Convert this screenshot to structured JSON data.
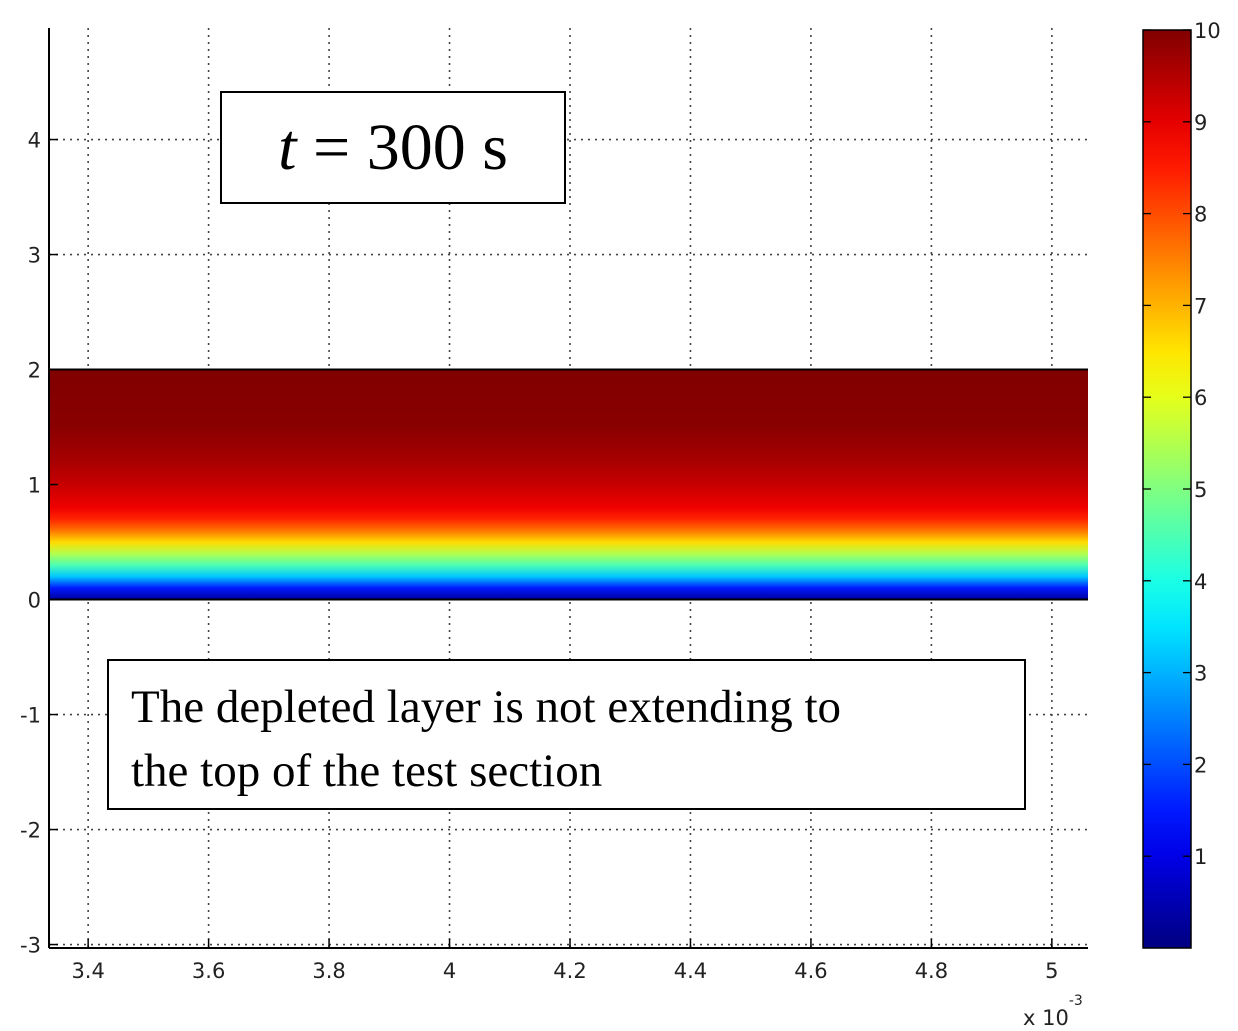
{
  "chart_data": {
    "type": "heatmap",
    "x_axis": {
      "ticks": [
        3.4,
        3.6,
        3.8,
        4.0,
        4.2,
        4.4,
        4.6,
        4.8,
        5.0
      ],
      "tick_labels": [
        "3.4",
        "3.6",
        "3.8",
        "4",
        "4.2",
        "4.4",
        "4.6",
        "4.8",
        "5"
      ],
      "range": [
        3.335,
        5.06
      ],
      "multiplier_label": "x 10",
      "multiplier_exponent": "-3"
    },
    "y_axis": {
      "ticks": [
        -3,
        -2,
        -1,
        0,
        1,
        2,
        3,
        4
      ],
      "tick_labels": [
        "-3",
        "-2",
        "-1",
        "0",
        "1",
        "2",
        "3",
        "4"
      ],
      "range": [
        -3.03,
        4.97
      ]
    },
    "field": {
      "y_bottom": 0,
      "y_top": 2,
      "profile": [
        {
          "y": 0.0,
          "value": 0.3
        },
        {
          "y": 0.1,
          "value": 1.5
        },
        {
          "y": 0.2,
          "value": 3.2
        },
        {
          "y": 0.3,
          "value": 4.5
        },
        {
          "y": 0.4,
          "value": 5.5
        },
        {
          "y": 0.5,
          "value": 6.6
        },
        {
          "y": 0.6,
          "value": 7.6
        },
        {
          "y": 0.7,
          "value": 8.4
        },
        {
          "y": 0.8,
          "value": 8.9
        },
        {
          "y": 1.0,
          "value": 9.3
        },
        {
          "y": 1.2,
          "value": 9.6
        },
        {
          "y": 1.5,
          "value": 9.9
        },
        {
          "y": 2.0,
          "value": 10.0
        }
      ]
    },
    "colorbar": {
      "range": [
        0,
        10
      ],
      "ticks": [
        1,
        2,
        3,
        4,
        5,
        6,
        7,
        8,
        9,
        10
      ],
      "tick_labels": [
        "1",
        "2",
        "3",
        "4",
        "5",
        "6",
        "7",
        "8",
        "9",
        "10"
      ],
      "colormap": "jet"
    },
    "grid": true,
    "annotations": [
      {
        "name": "time",
        "variable": "t",
        "text": " = 300 s"
      },
      {
        "name": "note",
        "lines": [
          "The depleted layer is not extending to",
          "the top of the test section"
        ]
      }
    ]
  }
}
